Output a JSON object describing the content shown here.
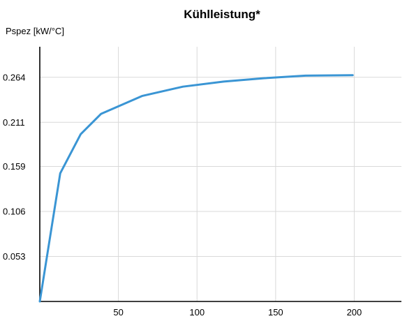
{
  "chart_data": {
    "type": "line",
    "title": "Kühlleistung*",
    "ylabel": "Pspez [kW/°C]",
    "xlabel": "",
    "xlim": [
      0,
      230
    ],
    "ylim": [
      0,
      0.3
    ],
    "xticks": [
      50,
      100,
      150,
      200
    ],
    "yticks": [
      0.053,
      0.106,
      0.159,
      0.211,
      0.264
    ],
    "ytick_labels": [
      "0.053",
      "0.106",
      "0.159",
      "0.211",
      "0.264"
    ],
    "xtick_labels": [
      "50",
      "100",
      "150",
      "200"
    ],
    "grid": true,
    "series": [
      {
        "color": "#3a95d4",
        "x": [
          0,
          13,
          26,
          39,
          65,
          91,
          117,
          143,
          169,
          199
        ],
        "y": [
          0,
          0.151,
          0.197,
          0.221,
          0.242,
          0.253,
          0.259,
          0.263,
          0.266,
          0.2665
        ]
      }
    ]
  }
}
